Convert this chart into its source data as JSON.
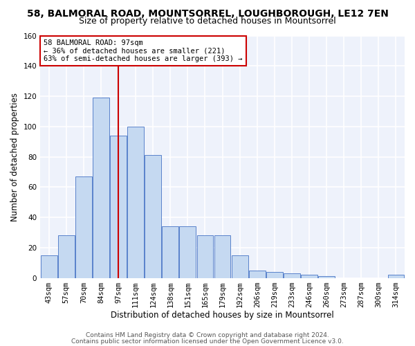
{
  "title_line1": "58, BALMORAL ROAD, MOUNTSORREL, LOUGHBOROUGH, LE12 7EN",
  "title_line2": "Size of property relative to detached houses in Mountsorrel",
  "xlabel": "Distribution of detached houses by size in Mountsorrel",
  "ylabel": "Number of detached properties",
  "categories": [
    "43sqm",
    "57sqm",
    "70sqm",
    "84sqm",
    "97sqm",
    "111sqm",
    "124sqm",
    "138sqm",
    "151sqm",
    "165sqm",
    "179sqm",
    "192sqm",
    "206sqm",
    "219sqm",
    "233sqm",
    "246sqm",
    "260sqm",
    "273sqm",
    "287sqm",
    "300sqm",
    "314sqm"
  ],
  "values": [
    15,
    28,
    67,
    119,
    94,
    100,
    81,
    34,
    34,
    28,
    28,
    15,
    5,
    4,
    3,
    2,
    1,
    0,
    0,
    0,
    2
  ],
  "bar_color": "#c5d9f1",
  "bar_edge_color": "#4472c4",
  "vline_x_idx": 4,
  "vline_color": "#cc0000",
  "ylim": [
    0,
    160
  ],
  "yticks": [
    0,
    20,
    40,
    60,
    80,
    100,
    120,
    140,
    160
  ],
  "annotation_line1": "58 BALMORAL ROAD: 97sqm",
  "annotation_line2": "← 36% of detached houses are smaller (221)",
  "annotation_line3": "63% of semi-detached houses are larger (393) →",
  "footer_line1": "Contains HM Land Registry data © Crown copyright and database right 2024.",
  "footer_line2": "Contains public sector information licensed under the Open Government Licence v3.0.",
  "bg_color": "#eef2fb",
  "grid_color": "#ffffff",
  "title_fontsize": 10,
  "subtitle_fontsize": 9,
  "axis_label_fontsize": 8.5,
  "tick_fontsize": 7.5,
  "annotation_fontsize": 7.5,
  "footer_fontsize": 6.5
}
